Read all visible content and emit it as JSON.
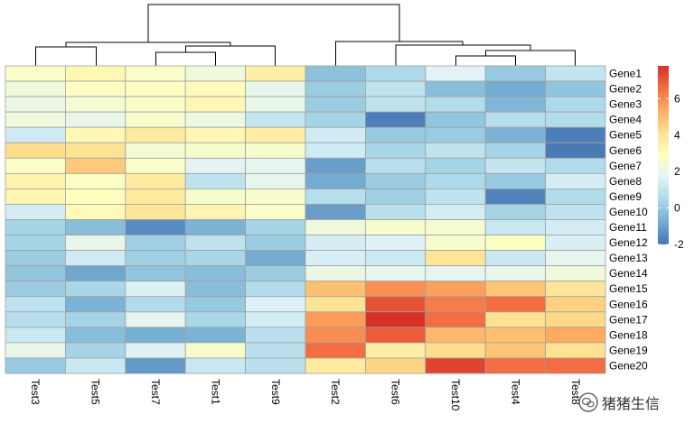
{
  "chart_data": {
    "type": "heatmap",
    "title": "",
    "columns": [
      "Test3",
      "Test5",
      "Test7",
      "Test1",
      "Test9",
      "Test2",
      "Test6",
      "Test10",
      "Test4",
      "Test8"
    ],
    "rows": [
      "Gene1",
      "Gene2",
      "Gene3",
      "Gene4",
      "Gene5",
      "Gene6",
      "Gene7",
      "Gene8",
      "Gene9",
      "Gene10",
      "Gene11",
      "Gene12",
      "Gene13",
      "Gene14",
      "Gene15",
      "Gene16",
      "Gene17",
      "Gene18",
      "Gene19",
      "Gene20"
    ],
    "values": [
      [
        2.7,
        3.2,
        2.7,
        2.3,
        3.6,
        -0.2,
        0.5,
        1.7,
        0.0,
        1.0
      ],
      [
        2.3,
        2.8,
        2.8,
        3.0,
        2.0,
        0.1,
        0.9,
        -0.3,
        -0.8,
        -0.1
      ],
      [
        2.1,
        2.5,
        2.7,
        3.2,
        2.0,
        0.1,
        0.9,
        0.6,
        -0.5,
        0.5
      ],
      [
        2.3,
        2.0,
        2.6,
        2.2,
        1.0,
        0.3,
        -1.8,
        -0.1,
        0.7,
        0.6
      ],
      [
        1.3,
        3.2,
        3.7,
        3.2,
        3.6,
        1.3,
        0.0,
        0.1,
        -0.6,
        -1.8
      ],
      [
        4.2,
        4.0,
        2.4,
        2.6,
        2.6,
        1.3,
        0.4,
        0.9,
        0.3,
        -1.9
      ],
      [
        2.7,
        4.7,
        2.7,
        1.8,
        1.9,
        -1.1,
        0.7,
        0.3,
        1.0,
        0.6
      ],
      [
        3.4,
        2.8,
        3.7,
        0.9,
        1.9,
        -0.8,
        0.1,
        0.5,
        0.0,
        1.4
      ],
      [
        3.3,
        2.9,
        3.7,
        2.6,
        2.6,
        0.7,
        0.2,
        0.9,
        -1.7,
        0.6
      ],
      [
        1.4,
        3.1,
        3.9,
        3.3,
        2.7,
        -1.1,
        0.8,
        1.4,
        0.3,
        0.9
      ],
      [
        0.3,
        -0.3,
        -1.5,
        -0.6,
        0.3,
        2.3,
        2.6,
        2.5,
        1.1,
        1.4
      ],
      [
        0.3,
        2.0,
        0.2,
        0.9,
        0.1,
        1.4,
        1.6,
        2.6,
        2.8,
        1.5
      ],
      [
        0.1,
        1.3,
        0.2,
        0.4,
        -0.8,
        1.5,
        1.2,
        3.9,
        1.1,
        1.9
      ],
      [
        -0.1,
        -0.9,
        -0.1,
        -0.3,
        0.1,
        2.1,
        1.9,
        1.9,
        2.0,
        2.3
      ],
      [
        0.1,
        0.4,
        1.6,
        -0.3,
        0.6,
        4.9,
        5.9,
        5.6,
        4.8,
        3.9
      ],
      [
        0.9,
        -0.6,
        0.6,
        0.0,
        1.6,
        4.0,
        7.1,
        6.3,
        6.6,
        4.5
      ],
      [
        0.7,
        0.3,
        1.9,
        0.4,
        1.4,
        5.7,
        7.8,
        6.6,
        4.1,
        4.3
      ],
      [
        1.2,
        -0.3,
        -0.7,
        -0.6,
        0.8,
        6.0,
        6.9,
        5.1,
        4.9,
        5.4
      ],
      [
        2.0,
        0.3,
        1.6,
        2.6,
        0.8,
        6.6,
        3.6,
        4.2,
        4.8,
        4.1
      ],
      [
        0.0,
        1.1,
        -1.2,
        1.1,
        0.8,
        3.7,
        4.4,
        7.4,
        6.6,
        6.6
      ]
    ],
    "legend": {
      "min": -2,
      "max": 7.8,
      "ticks": [
        -2,
        0,
        2,
        4,
        6
      ],
      "placement": "right"
    },
    "color_scale": {
      "low": "#4575B4",
      "mid": "#FFFFBF",
      "high": "#D73027"
    },
    "dendrogram": "column-clustering",
    "grid_color": "#a0a0a0"
  },
  "watermark": {
    "text": "猪猪生信"
  }
}
